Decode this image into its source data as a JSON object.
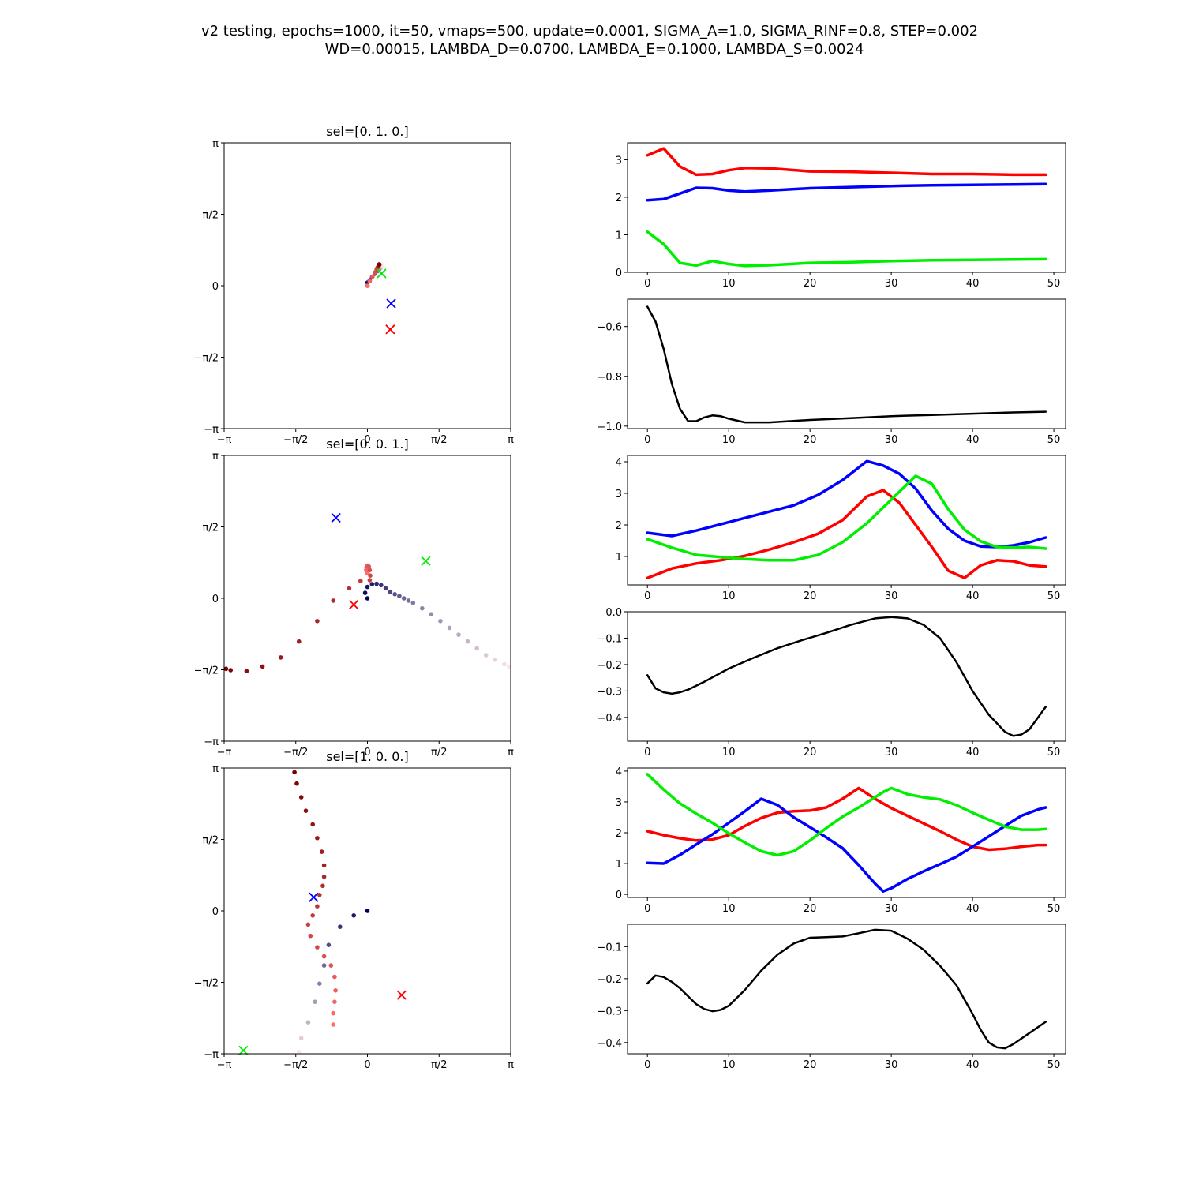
{
  "figure": {
    "suptitle": [
      "v2 testing, epochs=1000, it=50, vmaps=500, update=0.0001, SIGMA_A=1.0, SIGMA_RINF=0.8, STEP=0.002",
      "WD=0.00015, LAMBDA_D=0.0700, LAMBDA_E=0.1000, LAMBDA_S=0.0024"
    ]
  },
  "colors": {
    "red": "#ff0000",
    "green": "#00ee00",
    "blue": "#0000ff",
    "black": "#000000"
  },
  "chart_data": [
    {
      "type": "scatter",
      "panel": "row1-left",
      "title": "sel=[0. 1. 0.]",
      "xlim": [
        "-π",
        "π"
      ],
      "ylim": [
        "-π",
        "π"
      ],
      "tick_labels": [
        "−π",
        "−π/2",
        "0",
        "π/2",
        "π"
      ],
      "trajectories": [
        {
          "name": "",
          "colormap": "blue-white",
          "points": [
            [
              0,
              0
            ],
            [
              0,
              0.07
            ],
            [
              0.05,
              0.12
            ],
            [
              0.1,
              0.19
            ],
            [
              0.16,
              0.26
            ],
            [
              0.22,
              0.32
            ],
            [
              0.26,
              0.36
            ],
            [
              0.28,
              0.39
            ],
            [
              0.3,
              0.41
            ],
            [
              0.31,
              0.43
            ],
            [
              0.32,
              0.44
            ],
            [
              0.33,
              0.45
            ]
          ]
        },
        {
          "name": "",
          "colormap": "red-dark",
          "points": [
            [
              0,
              0
            ],
            [
              0.05,
              0.1
            ],
            [
              0.11,
              0.2
            ],
            [
              0.16,
              0.29
            ],
            [
              0.2,
              0.36
            ],
            [
              0.22,
              0.4
            ],
            [
              0.24,
              0.42
            ],
            [
              0.25,
              0.44
            ],
            [
              0.25,
              0.45
            ],
            [
              0.26,
              0.46
            ],
            [
              0.26,
              0.46
            ],
            [
              0.26,
              0.47
            ]
          ]
        }
      ],
      "targets": [
        {
          "color": "green",
          "x": 0.31,
          "y": 0.27
        },
        {
          "color": "blue",
          "x": 0.52,
          "y": -0.39
        },
        {
          "color": "red",
          "x": 0.5,
          "y": -0.96
        }
      ]
    },
    {
      "type": "line",
      "panel": "row1-right-top",
      "x": [
        0,
        2,
        4,
        6,
        8,
        10,
        12,
        15,
        20,
        25,
        30,
        35,
        40,
        45,
        49
      ],
      "xticks": [
        0,
        10,
        20,
        30,
        40,
        50
      ],
      "ylim": [
        0,
        3.45
      ],
      "yticks": [
        0,
        1,
        2,
        3
      ],
      "series": [
        {
          "name": "",
          "color": "red",
          "values": [
            3.12,
            3.3,
            2.82,
            2.6,
            2.62,
            2.72,
            2.78,
            2.77,
            2.69,
            2.68,
            2.65,
            2.62,
            2.62,
            2.6,
            2.6
          ]
        },
        {
          "name": "",
          "color": "blue",
          "values": [
            1.92,
            1.95,
            2.1,
            2.25,
            2.24,
            2.18,
            2.15,
            2.18,
            2.24,
            2.27,
            2.3,
            2.32,
            2.33,
            2.34,
            2.35
          ]
        },
        {
          "name": "",
          "color": "green",
          "values": [
            1.08,
            0.75,
            0.25,
            0.18,
            0.3,
            0.22,
            0.17,
            0.19,
            0.25,
            0.27,
            0.3,
            0.32,
            0.33,
            0.34,
            0.35
          ]
        }
      ]
    },
    {
      "type": "line",
      "panel": "row1-right-bottom",
      "x": [
        0,
        1,
        2,
        3,
        4,
        5,
        6,
        7,
        8,
        9,
        10,
        12,
        15,
        20,
        25,
        30,
        35,
        40,
        45,
        49
      ],
      "xticks": [
        0,
        10,
        20,
        30,
        40,
        50
      ],
      "ylim": [
        -1.01,
        -0.49
      ],
      "yticks": [
        -1.0,
        -0.8,
        -0.6
      ],
      "ytick_labels": [
        "−1.0",
        "−0.8",
        "−0.6"
      ],
      "series": [
        {
          "name": "",
          "color": "black",
          "values": [
            -0.52,
            -0.58,
            -0.69,
            -0.83,
            -0.93,
            -0.98,
            -0.98,
            -0.965,
            -0.957,
            -0.96,
            -0.97,
            -0.985,
            -0.985,
            -0.975,
            -0.968,
            -0.96,
            -0.955,
            -0.95,
            -0.945,
            -0.942
          ]
        }
      ]
    },
    {
      "type": "scatter",
      "panel": "row2-left",
      "title": "sel=[0. 0. 1.]",
      "xlim": [
        "-π",
        "π"
      ],
      "ylim": [
        "-π",
        "π"
      ],
      "tick_labels": [
        "−π",
        "−π/2",
        "0",
        "π/2",
        "π"
      ],
      "trajectories": [
        {
          "name": "",
          "colormap": "blue-white",
          "points": [
            [
              0,
              0
            ],
            [
              -0.05,
              0.12
            ],
            [
              0,
              0.25
            ],
            [
              0.1,
              0.31
            ],
            [
              0.2,
              0.32
            ],
            [
              0.3,
              0.29
            ],
            [
              0.4,
              0.22
            ],
            [
              0.5,
              0.14
            ],
            [
              0.6,
              0.09
            ],
            [
              0.7,
              0.05
            ],
            [
              0.8,
              0.0
            ],
            [
              0.9,
              -0.05
            ],
            [
              1.0,
              -0.1
            ],
            [
              1.2,
              -0.22
            ],
            [
              1.4,
              -0.35
            ],
            [
              1.6,
              -0.5
            ],
            [
              1.8,
              -0.65
            ],
            [
              2.0,
              -0.8
            ],
            [
              2.2,
              -0.95
            ],
            [
              2.4,
              -1.1
            ],
            [
              2.6,
              -1.25
            ],
            [
              2.8,
              -1.35
            ],
            [
              3.0,
              -1.45
            ],
            [
              3.1,
              -1.5
            ]
          ]
        },
        {
          "name": "",
          "colormap": "red-dark",
          "points": [
            [
              0,
              0.55
            ],
            [
              -0.03,
              0.62
            ],
            [
              -0.02,
              0.68
            ],
            [
              0,
              0.72
            ],
            [
              0.03,
              0.7
            ],
            [
              0.05,
              0.62
            ],
            [
              0.06,
              0.5
            ],
            [
              0.05,
              0.4
            ],
            [
              -0.15,
              0.38
            ],
            [
              -0.4,
              0.22
            ],
            [
              -0.75,
              -0.05
            ],
            [
              -1.1,
              -0.5
            ],
            [
              -1.5,
              -0.95
            ],
            [
              -1.9,
              -1.3
            ],
            [
              -2.3,
              -1.5
            ],
            [
              -2.65,
              -1.6
            ],
            [
              -3.0,
              -1.58
            ],
            [
              -3.1,
              -1.55
            ]
          ]
        }
      ],
      "targets": [
        {
          "color": "blue",
          "x": -0.69,
          "y": 1.77
        },
        {
          "color": "green",
          "x": 1.28,
          "y": 0.82
        },
        {
          "color": "red",
          "x": -0.3,
          "y": -0.14
        }
      ]
    },
    {
      "type": "line",
      "panel": "row2-right-top",
      "x": [
        0,
        3,
        6,
        9,
        12,
        15,
        18,
        21,
        24,
        27,
        29,
        31,
        33,
        35,
        37,
        39,
        41,
        43,
        45,
        47,
        49
      ],
      "xticks": [
        0,
        10,
        20,
        30,
        40,
        50
      ],
      "ylim": [
        0.1,
        4.2
      ],
      "yticks": [
        1,
        2,
        3,
        4
      ],
      "series": [
        {
          "name": "",
          "color": "red",
          "values": [
            0.32,
            0.62,
            0.78,
            0.88,
            1.02,
            1.22,
            1.45,
            1.72,
            2.15,
            2.9,
            3.1,
            2.7,
            2.0,
            1.3,
            0.55,
            0.32,
            0.72,
            0.88,
            0.85,
            0.72,
            0.68
          ]
        },
        {
          "name": "",
          "color": "blue",
          "values": [
            1.75,
            1.65,
            1.82,
            2.02,
            2.22,
            2.42,
            2.62,
            2.95,
            3.42,
            4.02,
            3.88,
            3.62,
            3.15,
            2.45,
            1.88,
            1.5,
            1.32,
            1.3,
            1.35,
            1.45,
            1.6
          ]
        },
        {
          "name": "",
          "color": "green",
          "values": [
            1.55,
            1.28,
            1.05,
            0.98,
            0.92,
            0.88,
            0.88,
            1.05,
            1.45,
            2.05,
            2.55,
            3.05,
            3.55,
            3.3,
            2.5,
            1.85,
            1.48,
            1.3,
            1.28,
            1.3,
            1.25
          ]
        }
      ]
    },
    {
      "type": "line",
      "panel": "row2-right-bottom",
      "x": [
        0,
        1,
        2,
        3,
        4,
        5,
        7,
        10,
        13,
        16,
        19,
        22,
        25,
        28,
        30,
        32,
        34,
        36,
        38,
        40,
        42,
        44,
        45,
        46,
        47,
        49
      ],
      "xticks": [
        0,
        10,
        20,
        30,
        40,
        50
      ],
      "ylim": [
        -0.49,
        0.0
      ],
      "yticks": [
        -0.4,
        -0.3,
        -0.2,
        -0.1,
        0.0
      ],
      "ytick_labels": [
        "−0.4",
        "−0.3",
        "−0.2",
        "−0.1",
        "0.0"
      ],
      "series": [
        {
          "name": "",
          "color": "black",
          "values": [
            -0.24,
            -0.29,
            -0.305,
            -0.31,
            -0.305,
            -0.295,
            -0.265,
            -0.215,
            -0.175,
            -0.138,
            -0.108,
            -0.08,
            -0.05,
            -0.025,
            -0.02,
            -0.025,
            -0.05,
            -0.1,
            -0.19,
            -0.3,
            -0.39,
            -0.455,
            -0.47,
            -0.465,
            -0.445,
            -0.36
          ]
        }
      ]
    },
    {
      "type": "scatter",
      "panel": "row3-left",
      "title": "sel=[1. 0. 0.]",
      "xlim": [
        "-π",
        "π"
      ],
      "ylim": [
        "-π",
        "π"
      ],
      "tick_labels": [
        "−π",
        "−π/2",
        "0",
        "π/2",
        "π"
      ],
      "trajectories": [
        {
          "name": "",
          "colormap": "blue-white",
          "points": [
            [
              0,
              0
            ],
            [
              -0.3,
              -0.1
            ],
            [
              -0.6,
              -0.35
            ],
            [
              -0.85,
              -0.75
            ],
            [
              -0.95,
              -1.2
            ],
            [
              -1.05,
              -1.6
            ],
            [
              -1.15,
              -2.0
            ],
            [
              -1.3,
              -2.45
            ],
            [
              -1.45,
              -2.8
            ],
            [
              -1.5,
              -3.1
            ]
          ]
        },
        {
          "name": "",
          "colormap": "red-dark",
          "points": [
            [
              -0.75,
              -2.5
            ],
            [
              -0.75,
              -2.25
            ],
            [
              -0.72,
              -2.0
            ],
            [
              -0.7,
              -1.75
            ],
            [
              -0.72,
              -1.45
            ],
            [
              -0.8,
              -1.2
            ],
            [
              -0.95,
              -1.0
            ],
            [
              -1.1,
              -0.8
            ],
            [
              -1.25,
              -0.55
            ],
            [
              -1.3,
              -0.3
            ],
            [
              -1.2,
              -0.1
            ],
            [
              -1.1,
              0.1
            ],
            [
              -1.05,
              0.35
            ],
            [
              -0.98,
              0.55
            ],
            [
              -0.95,
              0.75
            ],
            [
              -0.95,
              1.0
            ],
            [
              -1.0,
              1.3
            ],
            [
              -1.1,
              1.6
            ],
            [
              -1.2,
              1.9
            ],
            [
              -1.35,
              2.2
            ],
            [
              -1.45,
              2.5
            ],
            [
              -1.55,
              2.8
            ],
            [
              -1.6,
              3.05
            ]
          ]
        }
      ],
      "targets": [
        {
          "color": "blue",
          "x": -1.18,
          "y": 0.3
        },
        {
          "color": "red",
          "x": 0.75,
          "y": -1.85
        },
        {
          "color": "green",
          "x": -2.72,
          "y": -3.07
        }
      ]
    },
    {
      "type": "line",
      "panel": "row3-right-top",
      "x": [
        0,
        2,
        4,
        6,
        8,
        10,
        12,
        14,
        16,
        18,
        20,
        22,
        24,
        26,
        28,
        29,
        30,
        32,
        34,
        36,
        38,
        40,
        42,
        44,
        46,
        48,
        49
      ],
      "xticks": [
        0,
        10,
        20,
        30,
        40,
        50
      ],
      "ylim": [
        -0.1,
        4.1
      ],
      "yticks": [
        0,
        1,
        2,
        3,
        4
      ],
      "series": [
        {
          "name": "",
          "color": "red",
          "values": [
            2.05,
            1.92,
            1.82,
            1.75,
            1.78,
            1.92,
            2.22,
            2.48,
            2.65,
            2.7,
            2.72,
            2.82,
            3.1,
            3.45,
            3.1,
            2.95,
            2.8,
            2.55,
            2.3,
            2.05,
            1.78,
            1.55,
            1.45,
            1.48,
            1.55,
            1.6,
            1.6
          ]
        },
        {
          "name": "",
          "color": "blue",
          "values": [
            1.02,
            1.0,
            1.28,
            1.62,
            1.95,
            2.32,
            2.7,
            3.1,
            2.9,
            2.5,
            2.18,
            1.85,
            1.5,
            0.95,
            0.35,
            0.1,
            0.2,
            0.5,
            0.75,
            0.98,
            1.22,
            1.55,
            1.88,
            2.22,
            2.55,
            2.75,
            2.82
          ]
        },
        {
          "name": "",
          "color": "green",
          "values": [
            3.9,
            3.4,
            2.95,
            2.62,
            2.32,
            1.98,
            1.68,
            1.4,
            1.27,
            1.4,
            1.75,
            2.15,
            2.52,
            2.82,
            3.15,
            3.32,
            3.45,
            3.25,
            3.15,
            3.08,
            2.9,
            2.65,
            2.42,
            2.2,
            2.1,
            2.1,
            2.12
          ]
        }
      ]
    },
    {
      "type": "line",
      "panel": "row3-right-bottom",
      "x": [
        0,
        1,
        2,
        3,
        4,
        5,
        6,
        7,
        8,
        9,
        10,
        12,
        14,
        16,
        18,
        20,
        22,
        24,
        26,
        28,
        30,
        32,
        34,
        36,
        38,
        40,
        41,
        42,
        43,
        44,
        45,
        47,
        49
      ],
      "xticks": [
        0,
        10,
        20,
        30,
        40,
        50
      ],
      "ylim": [
        -0.435,
        -0.03
      ],
      "yticks": [
        -0.4,
        -0.3,
        -0.2,
        -0.1
      ],
      "ytick_labels": [
        "−0.4",
        "−0.3",
        "−0.2",
        "−0.1"
      ],
      "series": [
        {
          "name": "",
          "color": "black",
          "values": [
            -0.215,
            -0.19,
            -0.195,
            -0.21,
            -0.23,
            -0.255,
            -0.28,
            -0.295,
            -0.302,
            -0.298,
            -0.285,
            -0.235,
            -0.175,
            -0.125,
            -0.09,
            -0.072,
            -0.07,
            -0.068,
            -0.058,
            -0.047,
            -0.05,
            -0.075,
            -0.11,
            -0.16,
            -0.22,
            -0.31,
            -0.36,
            -0.4,
            -0.415,
            -0.418,
            -0.405,
            -0.37,
            -0.335
          ]
        }
      ]
    }
  ]
}
